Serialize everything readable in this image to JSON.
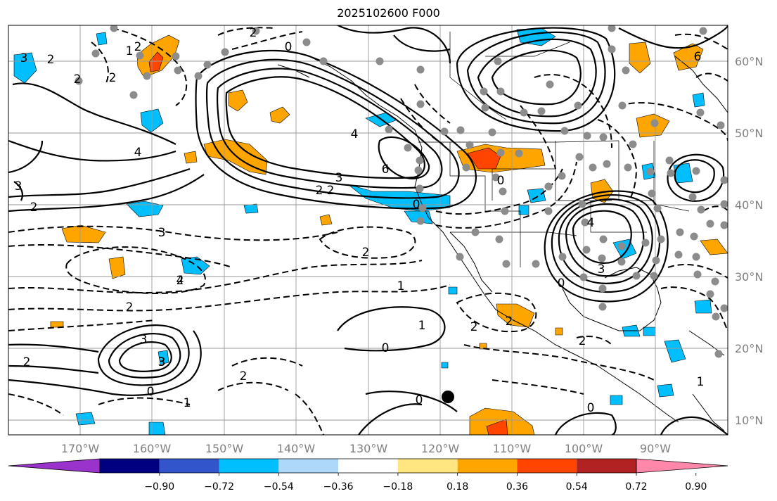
{
  "title": "2025102600 F000",
  "map": {
    "lon_labels": [
      "170°W",
      "160°W",
      "150°W",
      "140°W",
      "130°W",
      "120°W",
      "110°W",
      "100°W",
      "90°W"
    ],
    "lat_labels": [
      "60°N",
      "50°N",
      "40°N",
      "30°N",
      "20°N",
      "10°N"
    ],
    "contour_labels": [
      "3",
      "2",
      "2",
      "0",
      "2",
      "1",
      "2",
      "2",
      "3",
      "2",
      "4",
      "3",
      "2",
      "2",
      "1",
      "3",
      "2",
      "1",
      "0",
      "2",
      "2",
      "4",
      "3",
      "2",
      "3",
      "2",
      "0",
      "1",
      "6",
      "4",
      "0",
      "3",
      "2",
      "0",
      "0",
      "2",
      "2",
      "3",
      "4",
      "6",
      "1",
      "0",
      "0"
    ]
  },
  "colorbar": {
    "tick_labels": [
      "−0.90",
      "−0.72",
      "−0.54",
      "−0.36",
      "−0.18",
      "0.18",
      "0.36",
      "0.54",
      "0.72",
      "0.90"
    ],
    "colors": [
      "#9933cc",
      "#000080",
      "#3355cc",
      "#00bfff",
      "#add8f9",
      "#ffffff",
      "#ffe680",
      "#ffa500",
      "#ff4500",
      "#b22222",
      "#ff88aa"
    ]
  }
}
